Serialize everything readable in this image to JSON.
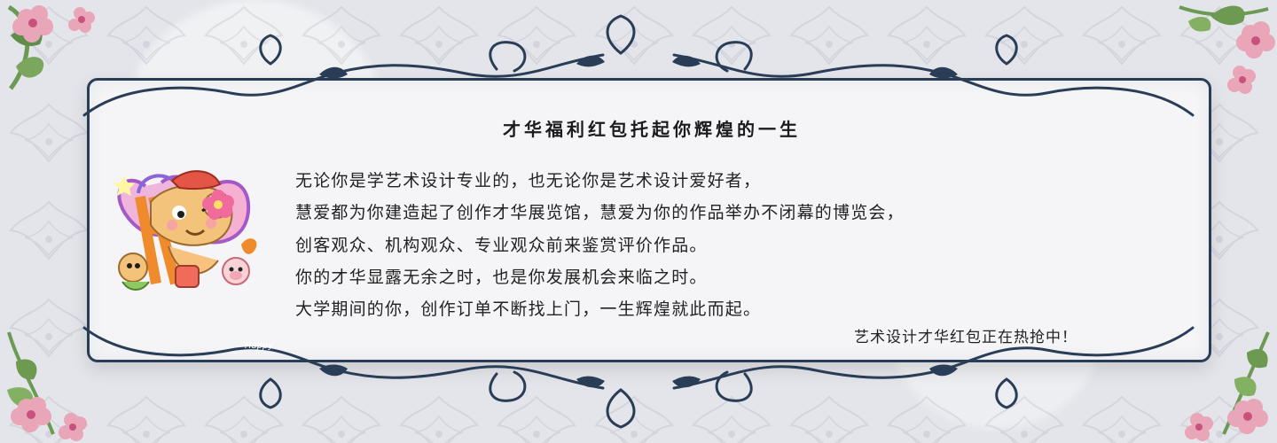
{
  "banner": {
    "title": "才华福利红包托起你辉煌的一生",
    "lines": [
      "无论你是学艺术设计专业的，也无论你是艺术设计爱好者，",
      "慧爱都为你建造起了创作才华展览馆，慧爱为你的作品举办不闭幕的博览会，",
      "创客观众、机构观众、专业观众前来鉴赏评价作品。",
      "你的才华显露无余之时，也是你发展机会来临之时。",
      "大学期间的你，创作订单不断找上门，一生辉煌就此而起。"
    ],
    "closing": "艺术设计才华红包正在热抢中！",
    "cartoon_text": "Happy"
  },
  "colors": {
    "frame": "#2a3d57",
    "panel": "#f5f5f7",
    "background": "#e4e5ea",
    "flower_pink": "#e8a6b8",
    "leaf_green": "#6a9a54"
  },
  "decorations": {
    "cartoon": "monkey-painter-icon",
    "corner_flowers": "flower-icon",
    "ornament": "scroll-ornament-icon"
  }
}
